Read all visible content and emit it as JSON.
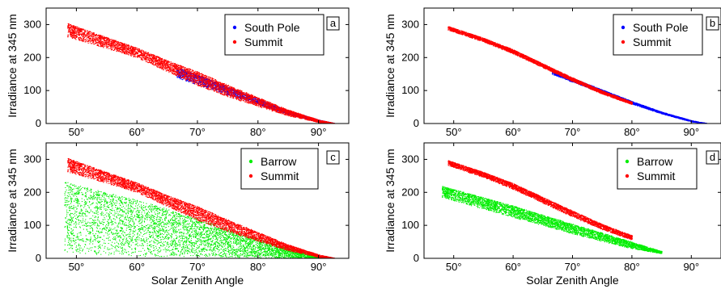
{
  "chart_data": [
    {
      "panel": "a",
      "type": "scatter",
      "xlabel": "",
      "ylabel": "Irradiance at 345 nm",
      "xlim": [
        45,
        95
      ],
      "ylim": [
        0,
        350
      ],
      "xticks": [
        "50°",
        "60°",
        "70°",
        "80°",
        "90°"
      ],
      "yticks": [
        "0",
        "100",
        "200",
        "300"
      ],
      "legend_position": "top-right",
      "series": [
        {
          "name": "South Pole",
          "color": "#0000ff",
          "style": "band",
          "x": [
            66.5,
            70,
            75,
            80,
            85,
            90,
            93
          ],
          "upper": [
            172,
            148,
            112,
            75,
            40,
            12,
            0
          ],
          "lower": [
            140,
            118,
            88,
            58,
            28,
            5,
            0
          ]
        },
        {
          "name": "Summit",
          "color": "#ff0000",
          "style": "band",
          "x": [
            48.5,
            55,
            60,
            65,
            70,
            75,
            80,
            85,
            90,
            93
          ],
          "upper": [
            305,
            262,
            230,
            192,
            158,
            118,
            80,
            42,
            12,
            0
          ],
          "lower": [
            262,
            228,
            200,
            158,
            115,
            82,
            52,
            24,
            4,
            0
          ]
        }
      ]
    },
    {
      "panel": "b",
      "type": "scatter",
      "xlabel": "",
      "ylabel": "Irradiance at 345 nm",
      "xlim": [
        45,
        95
      ],
      "ylim": [
        0,
        350
      ],
      "xticks": [
        "50°",
        "60°",
        "70°",
        "80°",
        "90°"
      ],
      "yticks": [
        "0",
        "100",
        "200",
        "300"
      ],
      "legend_position": "top-right",
      "series": [
        {
          "name": "South Pole",
          "color": "#0000ff",
          "style": "band",
          "x": [
            66.5,
            70,
            75,
            80,
            85,
            90,
            93
          ],
          "upper": [
            166,
            138,
            103,
            68,
            36,
            10,
            0
          ],
          "lower": [
            150,
            126,
            93,
            60,
            30,
            6,
            0
          ]
        },
        {
          "name": "Summit",
          "color": "#ff0000",
          "style": "band",
          "x": [
            49,
            55,
            60,
            65,
            70,
            75,
            80
          ],
          "upper": [
            296,
            260,
            225,
            182,
            140,
            100,
            66
          ],
          "lower": [
            284,
            248,
            212,
            170,
            128,
            90,
            58
          ]
        }
      ]
    },
    {
      "panel": "c",
      "type": "scatter",
      "xlabel": "Solar Zenith Angle",
      "ylabel": "Irradiance at 345 nm",
      "xlim": [
        45,
        95
      ],
      "ylim": [
        0,
        350
      ],
      "xticks": [
        "50°",
        "60°",
        "70°",
        "80°",
        "90°"
      ],
      "yticks": [
        "0",
        "100",
        "200",
        "300"
      ],
      "legend_position": "top-right",
      "series": [
        {
          "name": "Barrow",
          "color": "#00ee00",
          "style": "band",
          "x": [
            48,
            55,
            60,
            65,
            70,
            75,
            80,
            85,
            90,
            93
          ],
          "upper": [
            235,
            200,
            178,
            150,
            120,
            90,
            60,
            32,
            8,
            0
          ],
          "lower": [
            15,
            10,
            8,
            6,
            5,
            4,
            3,
            2,
            1,
            0
          ]
        },
        {
          "name": "Summit",
          "color": "#ff0000",
          "style": "band",
          "x": [
            48.5,
            55,
            60,
            65,
            70,
            75,
            80,
            85,
            90,
            93
          ],
          "upper": [
            305,
            262,
            230,
            192,
            158,
            118,
            80,
            42,
            12,
            0
          ],
          "lower": [
            262,
            228,
            200,
            158,
            115,
            82,
            52,
            24,
            4,
            0
          ]
        }
      ]
    },
    {
      "panel": "d",
      "type": "scatter",
      "xlabel": "Solar Zenith Angle",
      "ylabel": "Irradiance at 345 nm",
      "xlim": [
        45,
        95
      ],
      "ylim": [
        0,
        350
      ],
      "xticks": [
        "50°",
        "60°",
        "70°",
        "80°",
        "90°"
      ],
      "yticks": [
        "0",
        "100",
        "200",
        "300"
      ],
      "legend_position": "top-right",
      "series": [
        {
          "name": "Barrow",
          "color": "#00ee00",
          "style": "band",
          "x": [
            48,
            55,
            60,
            65,
            70,
            75,
            80,
            85
          ],
          "upper": [
            220,
            185,
            160,
            132,
            105,
            78,
            50,
            22
          ],
          "lower": [
            185,
            150,
            125,
            100,
            75,
            52,
            30,
            15
          ]
        },
        {
          "name": "Summit",
          "color": "#ff0000",
          "style": "band",
          "x": [
            49,
            55,
            60,
            65,
            70,
            75,
            80
          ],
          "upper": [
            298,
            262,
            228,
            186,
            145,
            104,
            70
          ],
          "lower": [
            282,
            246,
            210,
            168,
            126,
            88,
            56
          ]
        }
      ]
    }
  ]
}
